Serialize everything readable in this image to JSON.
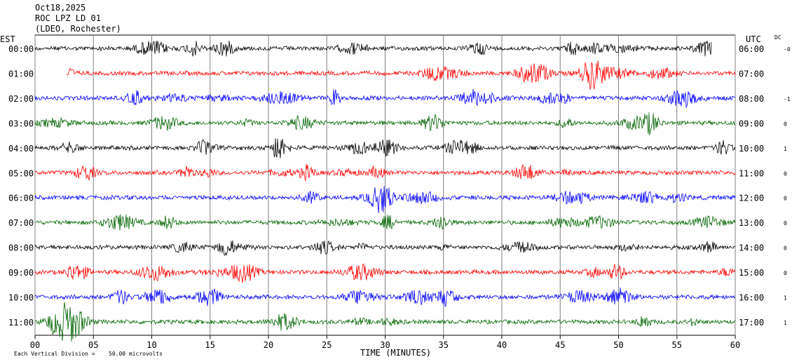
{
  "header": {
    "date": "Oct18,2025",
    "station": "ROC LPZ LD 01",
    "network": "(LDEO, Rochester)"
  },
  "footer": {
    "scale_note": "Each Vertical Division =",
    "scale_value": "50.00 microvolts"
  },
  "chart_data": {
    "type": "line",
    "title": "Oct18,2025 ROC LPZ LD 01 (LDEO, Rochester)",
    "xlabel": "TIME (MINUTES)",
    "left_axis_label": "EST",
    "right_axis_label": "UTC",
    "dc_label": "DC",
    "xlim": [
      0,
      60
    ],
    "x_ticks": [
      "00",
      "05",
      "10",
      "15",
      "20",
      "25",
      "30",
      "35",
      "40",
      "45",
      "50",
      "55",
      "60"
    ],
    "grid": true,
    "colors": [
      "#000000",
      "#ff0000",
      "#0000ff",
      "#006400"
    ],
    "rows": [
      {
        "est": "00:00",
        "utc": "06:00",
        "dc": "-0",
        "start_min": 0,
        "end_min": 58,
        "color": "#000000"
      },
      {
        "est": "01:00",
        "utc": "07:00",
        "dc": "",
        "start_min": 2.7,
        "end_min": 60,
        "color": "#ff0000"
      },
      {
        "est": "02:00",
        "utc": "08:00",
        "dc": "-1",
        "start_min": 0,
        "end_min": 60,
        "color": "#0000ff"
      },
      {
        "est": "03:00",
        "utc": "09:00",
        "dc": "0",
        "start_min": 0,
        "end_min": 60,
        "color": "#006400"
      },
      {
        "est": "04:00",
        "utc": "10:00",
        "dc": "1",
        "start_min": 0,
        "end_min": 60,
        "color": "#000000"
      },
      {
        "est": "05:00",
        "utc": "11:00",
        "dc": "0",
        "start_min": 0,
        "end_min": 60,
        "color": "#ff0000"
      },
      {
        "est": "06:00",
        "utc": "12:00",
        "dc": "0",
        "start_min": 0,
        "end_min": 60,
        "color": "#0000ff"
      },
      {
        "est": "07:00",
        "utc": "13:00",
        "dc": "0",
        "start_min": 0,
        "end_min": 60,
        "color": "#006400"
      },
      {
        "est": "08:00",
        "utc": "14:00",
        "dc": "0",
        "start_min": 0,
        "end_min": 60,
        "color": "#000000"
      },
      {
        "est": "09:00",
        "utc": "15:00",
        "dc": "0",
        "start_min": 0,
        "end_min": 60,
        "color": "#ff0000"
      },
      {
        "est": "10:00",
        "utc": "16:00",
        "dc": "1",
        "start_min": 0,
        "end_min": 60,
        "color": "#0000ff"
      },
      {
        "est": "11:00",
        "utc": "17:00",
        "dc": "1",
        "start_min": 0,
        "end_min": 60,
        "color": "#006400"
      }
    ]
  }
}
